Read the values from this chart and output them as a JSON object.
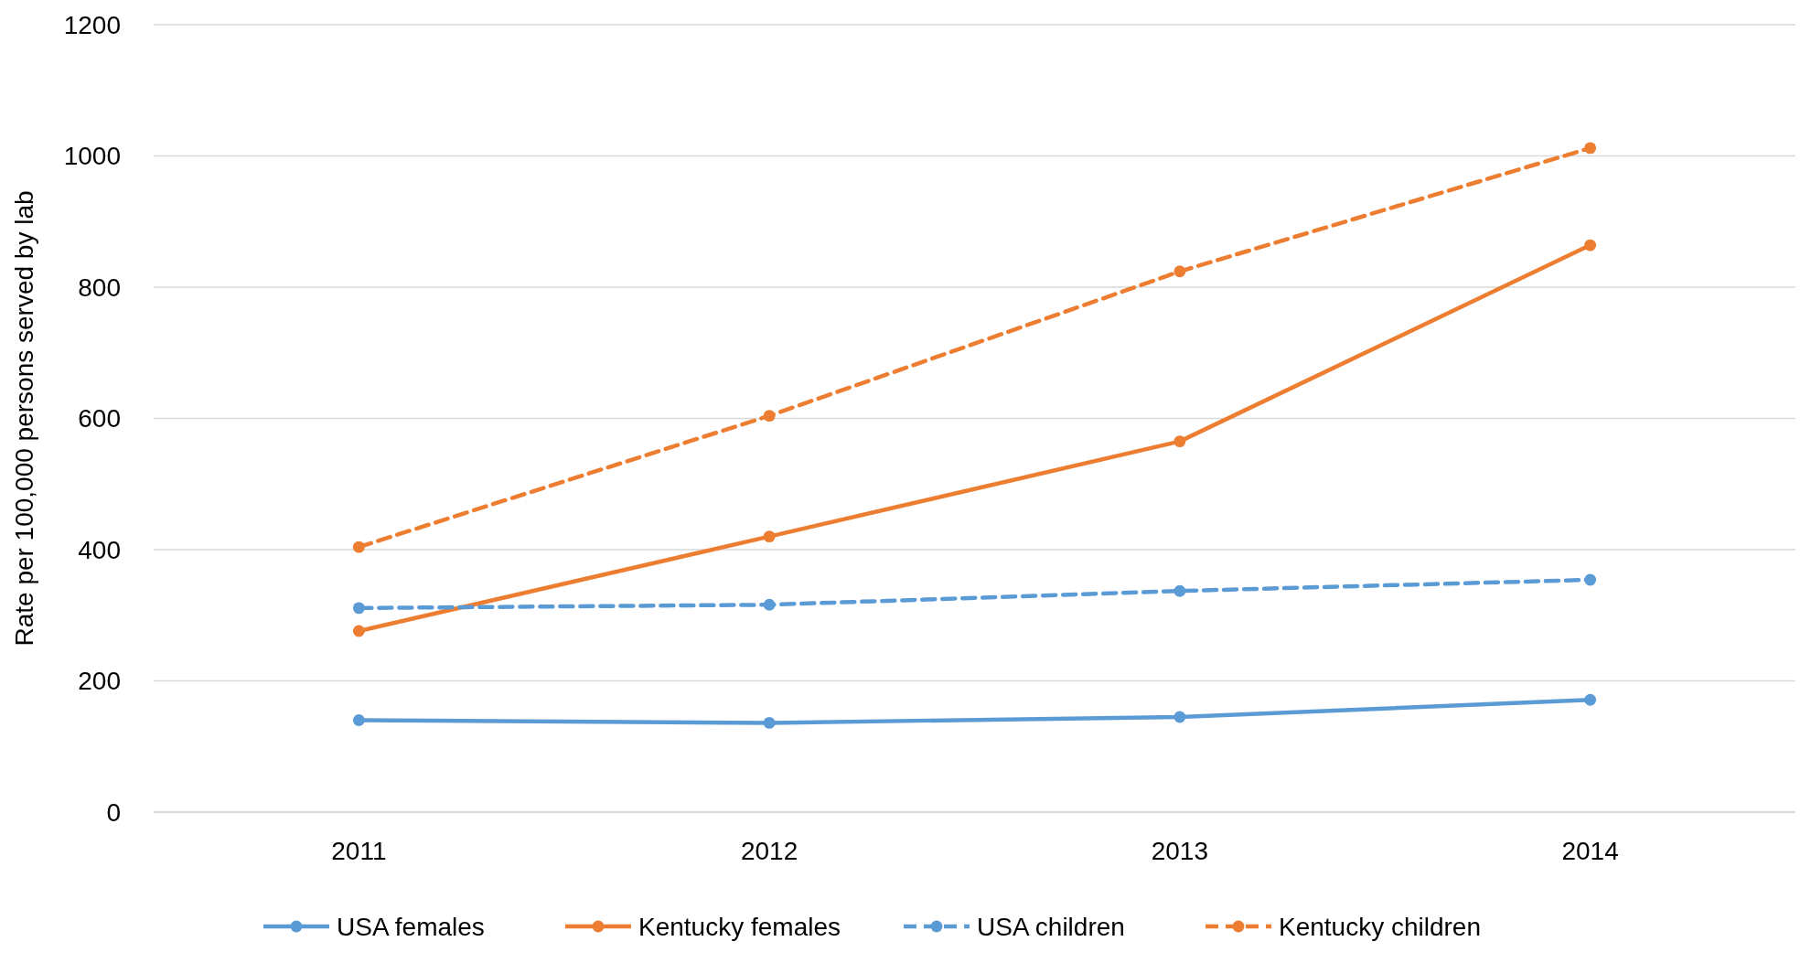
{
  "chart_data": {
    "type": "line",
    "ylabel": "Rate per 100,000 persons served by lab",
    "categories": [
      "2011",
      "2012",
      "2013",
      "2014"
    ],
    "ylim": [
      0,
      1200
    ],
    "yticks": [
      0,
      200,
      400,
      600,
      800,
      1000,
      1200
    ],
    "grid": "y",
    "legend": "bottom",
    "marker": "circle",
    "series": [
      {
        "name": "USA females",
        "color": "#5b9bd5",
        "line_style": "solid",
        "values": [
          140,
          136,
          145,
          171
        ]
      },
      {
        "name": "Kentucky females",
        "color": "#ed7d31",
        "line_style": "solid",
        "values": [
          276,
          420,
          565,
          864
        ]
      },
      {
        "name": "USA children",
        "color": "#5b9bd5",
        "line_style": "dashed",
        "values": [
          311,
          316,
          337,
          354
        ]
      },
      {
        "name": "Kentucky children",
        "color": "#ed7d31",
        "line_style": "dashed",
        "values": [
          404,
          604,
          824,
          1012
        ]
      }
    ]
  }
}
